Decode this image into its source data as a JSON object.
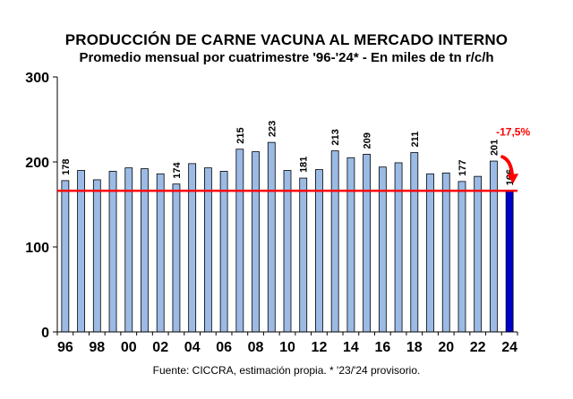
{
  "header": {
    "title": "PRODUCCIÓN DE CARNE VACUNA AL MERCADO INTERNO",
    "subtitle": "Promedio mensual por cuatrimestre '96-'24* - En miles de tn r/c/h"
  },
  "footer": {
    "source": "Fuente: CICCRA, estimación propia. * '23/'24 provisorio."
  },
  "chart_data": {
    "type": "bar",
    "title": "PRODUCCIÓN DE CARNE VACUNA AL MERCADO INTERNO",
    "subtitle": "Promedio mensual por cuatrimestre '96-'24* - En miles de tn r/c/h",
    "categories": [
      "96",
      "97",
      "98",
      "99",
      "00",
      "01",
      "02",
      "03",
      "04",
      "05",
      "06",
      "07",
      "08",
      "09",
      "10",
      "11",
      "12",
      "13",
      "14",
      "15",
      "16",
      "17",
      "18",
      "19",
      "20",
      "21",
      "22",
      "23",
      "24"
    ],
    "x_tick_labels": [
      "96",
      "98",
      "00",
      "02",
      "04",
      "06",
      "08",
      "10",
      "12",
      "14",
      "16",
      "18",
      "20",
      "22",
      "24"
    ],
    "values": [
      178,
      190,
      179,
      189,
      193,
      192,
      186,
      174,
      198,
      193,
      189,
      215,
      212,
      223,
      190,
      181,
      191,
      213,
      205,
      209,
      194,
      199,
      211,
      186,
      187,
      177,
      183,
      201,
      166
    ],
    "data_labels": {
      "0": "178",
      "7": "174",
      "11": "215",
      "13": "223",
      "15": "181",
      "17": "213",
      "19": "209",
      "22": "211",
      "25": "177",
      "27": "201",
      "28": "166"
    },
    "ylim": [
      0,
      300
    ],
    "yticks": [
      0,
      100,
      200,
      300
    ],
    "reference_line": {
      "value": 166,
      "color": "#ff0000"
    },
    "annotation": {
      "text": "-17,5%",
      "color": "#ff0000"
    },
    "colors": {
      "bar": "#9bbbe6",
      "bar_stroke": "#000000",
      "highlight_bar": "#0000cc"
    },
    "highlight_index": 28,
    "xlabel": "",
    "ylabel": "",
    "grid": false,
    "legend": "none"
  }
}
